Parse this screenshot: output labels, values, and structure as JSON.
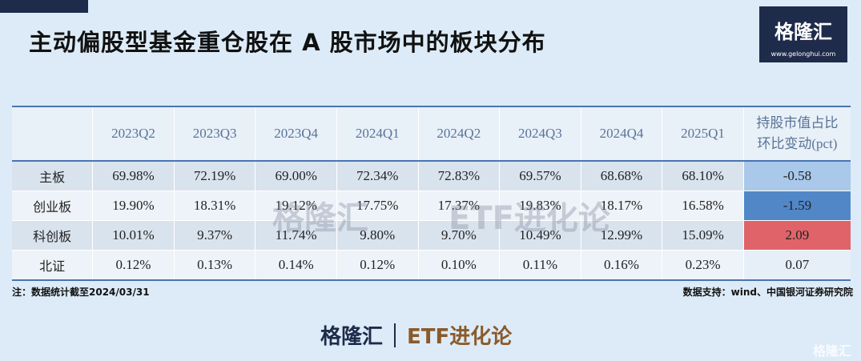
{
  "header": {
    "title": "主动偏股型基金重仓股在 A 股市场中的板块分布",
    "logo": "格隆汇",
    "logo_url": "www.gelonghui.com"
  },
  "table": {
    "columns": [
      "2023Q2",
      "2023Q3",
      "2023Q4",
      "2024Q1",
      "2024Q2",
      "2024Q3",
      "2024Q4",
      "2025Q1"
    ],
    "change_header": [
      "持股市值占比",
      "环比变动(pct)"
    ],
    "rows": [
      {
        "label": "主板",
        "values": [
          "69.98%",
          "72.19%",
          "69.00%",
          "72.34%",
          "72.83%",
          "69.57%",
          "68.68%",
          "68.10%"
        ],
        "change": "-0.58",
        "color": "#a9c8ea"
      },
      {
        "label": "创业板",
        "values": [
          "19.90%",
          "18.31%",
          "19.12%",
          "17.75%",
          "17.37%",
          "19.83%",
          "18.17%",
          "16.58%"
        ],
        "change": "-1.59",
        "color": "#5287c7"
      },
      {
        "label": "科创板",
        "values": [
          "10.01%",
          "9.37%",
          "11.74%",
          "9.80%",
          "9.70%",
          "10.49%",
          "12.99%",
          "15.09%"
        ],
        "change": "2.09",
        "color": "#e0636a"
      },
      {
        "label": "北证",
        "values": [
          "0.12%",
          "0.13%",
          "0.14%",
          "0.12%",
          "0.10%",
          "0.11%",
          "0.16%",
          "0.23%"
        ],
        "change": "0.07",
        "color": "#e6eef8"
      }
    ]
  },
  "notes": {
    "left": "注：数据统计截至2024/03/31",
    "right": "数据支持：wind、中国银河证券研究院"
  },
  "footer": {
    "brand": "格隆汇",
    "brand_url": "www.gelonghui.com",
    "column": "ETF进化论"
  }
}
